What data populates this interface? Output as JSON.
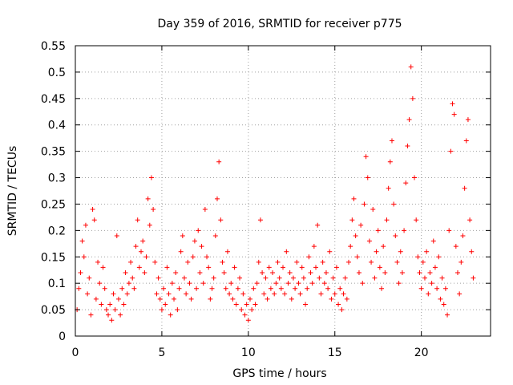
{
  "chart_data": {
    "type": "scatter",
    "title": "Day 359 of 2016, SRMTID for receiver p775",
    "xlabel": "GPS time / hours",
    "ylabel": "SRMTID / TECUs",
    "xlim": [
      0,
      24
    ],
    "ylim": [
      0,
      0.55
    ],
    "xticks": [
      0,
      5,
      10,
      15,
      20
    ],
    "xtick_labels": [
      "0",
      "5",
      "10",
      "15",
      "20"
    ],
    "yticks": [
      0,
      0.05,
      0.1,
      0.15,
      0.2,
      0.25,
      0.3,
      0.35,
      0.4,
      0.45,
      0.5,
      0.55
    ],
    "ytick_labels": [
      "0",
      "0.05",
      "0.1",
      "0.15",
      "0.2",
      "0.25",
      "0.3",
      "0.35",
      "0.4",
      "0.45",
      "0.5",
      "0.55"
    ],
    "grid": true,
    "marker": "+",
    "color": "#ff0000",
    "series": [
      {
        "name": "SRMTID",
        "points": [
          [
            0.1,
            0.05
          ],
          [
            0.2,
            0.09
          ],
          [
            0.3,
            0.12
          ],
          [
            0.4,
            0.18
          ],
          [
            0.5,
            0.15
          ],
          [
            0.6,
            0.21
          ],
          [
            0.7,
            0.08
          ],
          [
            0.8,
            0.11
          ],
          [
            0.9,
            0.04
          ],
          [
            1.0,
            0.24
          ],
          [
            1.1,
            0.22
          ],
          [
            1.2,
            0.07
          ],
          [
            1.3,
            0.14
          ],
          [
            1.4,
            0.1
          ],
          [
            1.5,
            0.06
          ],
          [
            1.6,
            0.13
          ],
          [
            1.7,
            0.09
          ],
          [
            1.8,
            0.05
          ],
          [
            1.9,
            0.04
          ],
          [
            2.0,
            0.06
          ],
          [
            2.1,
            0.03
          ],
          [
            2.2,
            0.08
          ],
          [
            2.3,
            0.05
          ],
          [
            2.4,
            0.19
          ],
          [
            2.5,
            0.07
          ],
          [
            2.6,
            0.04
          ],
          [
            2.7,
            0.09
          ],
          [
            2.8,
            0.06
          ],
          [
            2.9,
            0.12
          ],
          [
            3.0,
            0.08
          ],
          [
            3.1,
            0.1
          ],
          [
            3.2,
            0.14
          ],
          [
            3.3,
            0.11
          ],
          [
            3.4,
            0.09
          ],
          [
            3.5,
            0.17
          ],
          [
            3.6,
            0.22
          ],
          [
            3.7,
            0.13
          ],
          [
            3.8,
            0.16
          ],
          [
            3.9,
            0.18
          ],
          [
            4.0,
            0.12
          ],
          [
            4.1,
            0.15
          ],
          [
            4.2,
            0.26
          ],
          [
            4.3,
            0.21
          ],
          [
            4.4,
            0.3
          ],
          [
            4.5,
            0.24
          ],
          [
            4.6,
            0.14
          ],
          [
            4.7,
            0.08
          ],
          [
            4.8,
            0.11
          ],
          [
            4.9,
            0.07
          ],
          [
            5.0,
            0.05
          ],
          [
            5.1,
            0.09
          ],
          [
            5.2,
            0.06
          ],
          [
            5.3,
            0.13
          ],
          [
            5.4,
            0.08
          ],
          [
            5.5,
            0.04
          ],
          [
            5.6,
            0.1
          ],
          [
            5.7,
            0.07
          ],
          [
            5.8,
            0.12
          ],
          [
            5.9,
            0.05
          ],
          [
            6.0,
            0.09
          ],
          [
            6.1,
            0.16
          ],
          [
            6.2,
            0.19
          ],
          [
            6.3,
            0.11
          ],
          [
            6.4,
            0.08
          ],
          [
            6.5,
            0.14
          ],
          [
            6.6,
            0.1
          ],
          [
            6.7,
            0.07
          ],
          [
            6.8,
            0.15
          ],
          [
            6.9,
            0.18
          ],
          [
            7.0,
            0.09
          ],
          [
            7.1,
            0.2
          ],
          [
            7.2,
            0.12
          ],
          [
            7.3,
            0.17
          ],
          [
            7.4,
            0.1
          ],
          [
            7.5,
            0.24
          ],
          [
            7.6,
            0.15
          ],
          [
            7.7,
            0.13
          ],
          [
            7.8,
            0.07
          ],
          [
            7.9,
            0.09
          ],
          [
            8.0,
            0.11
          ],
          [
            8.1,
            0.19
          ],
          [
            8.2,
            0.26
          ],
          [
            8.3,
            0.33
          ],
          [
            8.4,
            0.22
          ],
          [
            8.5,
            0.14
          ],
          [
            8.6,
            0.12
          ],
          [
            8.7,
            0.09
          ],
          [
            8.8,
            0.16
          ],
          [
            8.9,
            0.08
          ],
          [
            9.0,
            0.1
          ],
          [
            9.1,
            0.07
          ],
          [
            9.2,
            0.13
          ],
          [
            9.3,
            0.06
          ],
          [
            9.4,
            0.09
          ],
          [
            9.5,
            0.11
          ],
          [
            9.6,
            0.05
          ],
          [
            9.7,
            0.08
          ],
          [
            9.8,
            0.04
          ],
          [
            9.9,
            0.06
          ],
          [
            10.0,
            0.03
          ],
          [
            10.1,
            0.07
          ],
          [
            10.2,
            0.05
          ],
          [
            10.3,
            0.09
          ],
          [
            10.4,
            0.06
          ],
          [
            10.5,
            0.1
          ],
          [
            10.6,
            0.14
          ],
          [
            10.7,
            0.22
          ],
          [
            10.8,
            0.12
          ],
          [
            10.9,
            0.08
          ],
          [
            11.0,
            0.11
          ],
          [
            11.1,
            0.07
          ],
          [
            11.2,
            0.13
          ],
          [
            11.3,
            0.09
          ],
          [
            11.4,
            0.12
          ],
          [
            11.5,
            0.08
          ],
          [
            11.6,
            0.1
          ],
          [
            11.7,
            0.14
          ],
          [
            11.8,
            0.11
          ],
          [
            11.9,
            0.09
          ],
          [
            12.0,
            0.13
          ],
          [
            12.1,
            0.08
          ],
          [
            12.2,
            0.16
          ],
          [
            12.3,
            0.1
          ],
          [
            12.4,
            0.12
          ],
          [
            12.5,
            0.07
          ],
          [
            12.6,
            0.11
          ],
          [
            12.7,
            0.09
          ],
          [
            12.8,
            0.14
          ],
          [
            12.9,
            0.1
          ],
          [
            13.0,
            0.08
          ],
          [
            13.1,
            0.13
          ],
          [
            13.2,
            0.11
          ],
          [
            13.3,
            0.06
          ],
          [
            13.4,
            0.09
          ],
          [
            13.5,
            0.15
          ],
          [
            13.6,
            0.12
          ],
          [
            13.7,
            0.1
          ],
          [
            13.8,
            0.17
          ],
          [
            13.9,
            0.13
          ],
          [
            14.0,
            0.21
          ],
          [
            14.1,
            0.11
          ],
          [
            14.2,
            0.08
          ],
          [
            14.3,
            0.14
          ],
          [
            14.4,
            0.1
          ],
          [
            14.5,
            0.12
          ],
          [
            14.6,
            0.09
          ],
          [
            14.7,
            0.16
          ],
          [
            14.8,
            0.07
          ],
          [
            14.9,
            0.11
          ],
          [
            15.0,
            0.08
          ],
          [
            15.1,
            0.13
          ],
          [
            15.2,
            0.06
          ],
          [
            15.3,
            0.09
          ],
          [
            15.4,
            0.05
          ],
          [
            15.5,
            0.08
          ],
          [
            15.6,
            0.11
          ],
          [
            15.7,
            0.07
          ],
          [
            15.8,
            0.14
          ],
          [
            15.9,
            0.17
          ],
          [
            16.0,
            0.22
          ],
          [
            16.1,
            0.26
          ],
          [
            16.2,
            0.19
          ],
          [
            16.3,
            0.15
          ],
          [
            16.4,
            0.12
          ],
          [
            16.5,
            0.21
          ],
          [
            16.6,
            0.1
          ],
          [
            16.7,
            0.25
          ],
          [
            16.8,
            0.34
          ],
          [
            16.9,
            0.3
          ],
          [
            17.0,
            0.18
          ],
          [
            17.1,
            0.14
          ],
          [
            17.2,
            0.24
          ],
          [
            17.3,
            0.11
          ],
          [
            17.4,
            0.16
          ],
          [
            17.5,
            0.2
          ],
          [
            17.6,
            0.13
          ],
          [
            17.7,
            0.09
          ],
          [
            17.8,
            0.17
          ],
          [
            17.9,
            0.12
          ],
          [
            18.0,
            0.22
          ],
          [
            18.1,
            0.28
          ],
          [
            18.2,
            0.33
          ],
          [
            18.3,
            0.37
          ],
          [
            18.4,
            0.25
          ],
          [
            18.5,
            0.19
          ],
          [
            18.6,
            0.14
          ],
          [
            18.7,
            0.1
          ],
          [
            18.8,
            0.16
          ],
          [
            18.9,
            0.12
          ],
          [
            19.0,
            0.2
          ],
          [
            19.1,
            0.29
          ],
          [
            19.2,
            0.36
          ],
          [
            19.3,
            0.41
          ],
          [
            19.4,
            0.51
          ],
          [
            19.5,
            0.45
          ],
          [
            19.6,
            0.3
          ],
          [
            19.7,
            0.22
          ],
          [
            19.8,
            0.15
          ],
          [
            19.9,
            0.12
          ],
          [
            20.0,
            0.09
          ],
          [
            20.1,
            0.14
          ],
          [
            20.2,
            0.11
          ],
          [
            20.3,
            0.16
          ],
          [
            20.4,
            0.08
          ],
          [
            20.5,
            0.12
          ],
          [
            20.6,
            0.1
          ],
          [
            20.7,
            0.18
          ],
          [
            20.8,
            0.13
          ],
          [
            20.9,
            0.09
          ],
          [
            21.0,
            0.15
          ],
          [
            21.1,
            0.07
          ],
          [
            21.2,
            0.11
          ],
          [
            21.3,
            0.06
          ],
          [
            21.4,
            0.09
          ],
          [
            21.5,
            0.04
          ],
          [
            21.6,
            0.2
          ],
          [
            21.7,
            0.35
          ],
          [
            21.8,
            0.44
          ],
          [
            21.9,
            0.42
          ],
          [
            22.0,
            0.17
          ],
          [
            22.1,
            0.12
          ],
          [
            22.2,
            0.08
          ],
          [
            22.3,
            0.14
          ],
          [
            22.4,
            0.19
          ],
          [
            22.5,
            0.28
          ],
          [
            22.6,
            0.37
          ],
          [
            22.7,
            0.41
          ],
          [
            22.8,
            0.22
          ],
          [
            22.9,
            0.16
          ],
          [
            23.0,
            0.11
          ]
        ]
      }
    ]
  }
}
